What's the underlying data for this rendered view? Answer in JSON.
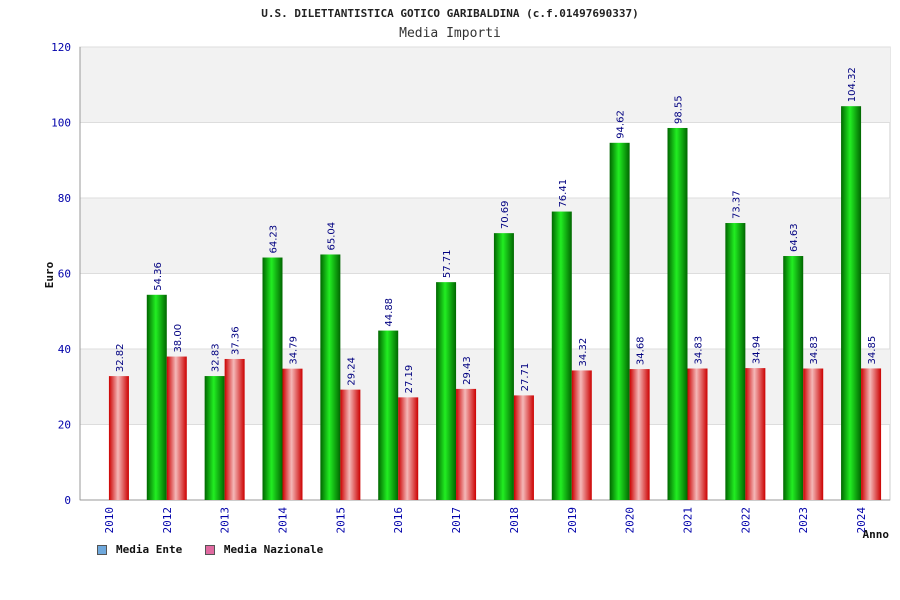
{
  "chart_data": {
    "type": "bar",
    "title": "U.S. DILETTANTISTICA GOTICO GARIBALDINA (c.f.01497690337)",
    "subtitle": "Media Importi",
    "xlabel": "Anno",
    "ylabel": "Euro",
    "ylim": [
      0,
      120
    ],
    "yticks": [
      0,
      20,
      40,
      60,
      80,
      100,
      120
    ],
    "categories": [
      "2010",
      "2012",
      "2013",
      "2014",
      "2015",
      "2016",
      "2017",
      "2018",
      "2019",
      "2020",
      "2021",
      "2022",
      "2023",
      "2024"
    ],
    "series": [
      {
        "name": "Media Ente",
        "color": "#00cc00",
        "values": [
          null,
          54.36,
          32.83,
          64.23,
          65.04,
          44.88,
          57.71,
          70.69,
          76.41,
          94.62,
          98.55,
          73.37,
          64.63,
          104.32
        ]
      },
      {
        "name": "Media Nazionale",
        "color": "#ee2222",
        "values": [
          32.82,
          38.0,
          37.36,
          34.79,
          29.24,
          27.19,
          29.43,
          27.71,
          34.32,
          34.68,
          34.83,
          34.94,
          34.83,
          34.85
        ]
      }
    ],
    "value_labels": {
      "ente": [
        "",
        "54.36",
        "32.83",
        "64.23",
        "65.04",
        "44.88",
        "57.71",
        "70.69",
        "76.41",
        "94.62",
        "98.55",
        "73.37",
        "64.63",
        "104.32"
      ],
      "nazionale": [
        "32.82",
        "38.00",
        "37.36",
        "34.79",
        "29.24",
        "27.19",
        "29.43",
        "27.71",
        "34.32",
        "34.68",
        "34.83",
        "34.94",
        "34.83",
        "34.85"
      ]
    },
    "legend": {
      "position": "bottom-left",
      "items": [
        {
          "label": "Media Ente",
          "color": "#6fa8dc"
        },
        {
          "label": "Media Nazionale",
          "color": "#e06aa0"
        }
      ]
    },
    "grid": true
  }
}
